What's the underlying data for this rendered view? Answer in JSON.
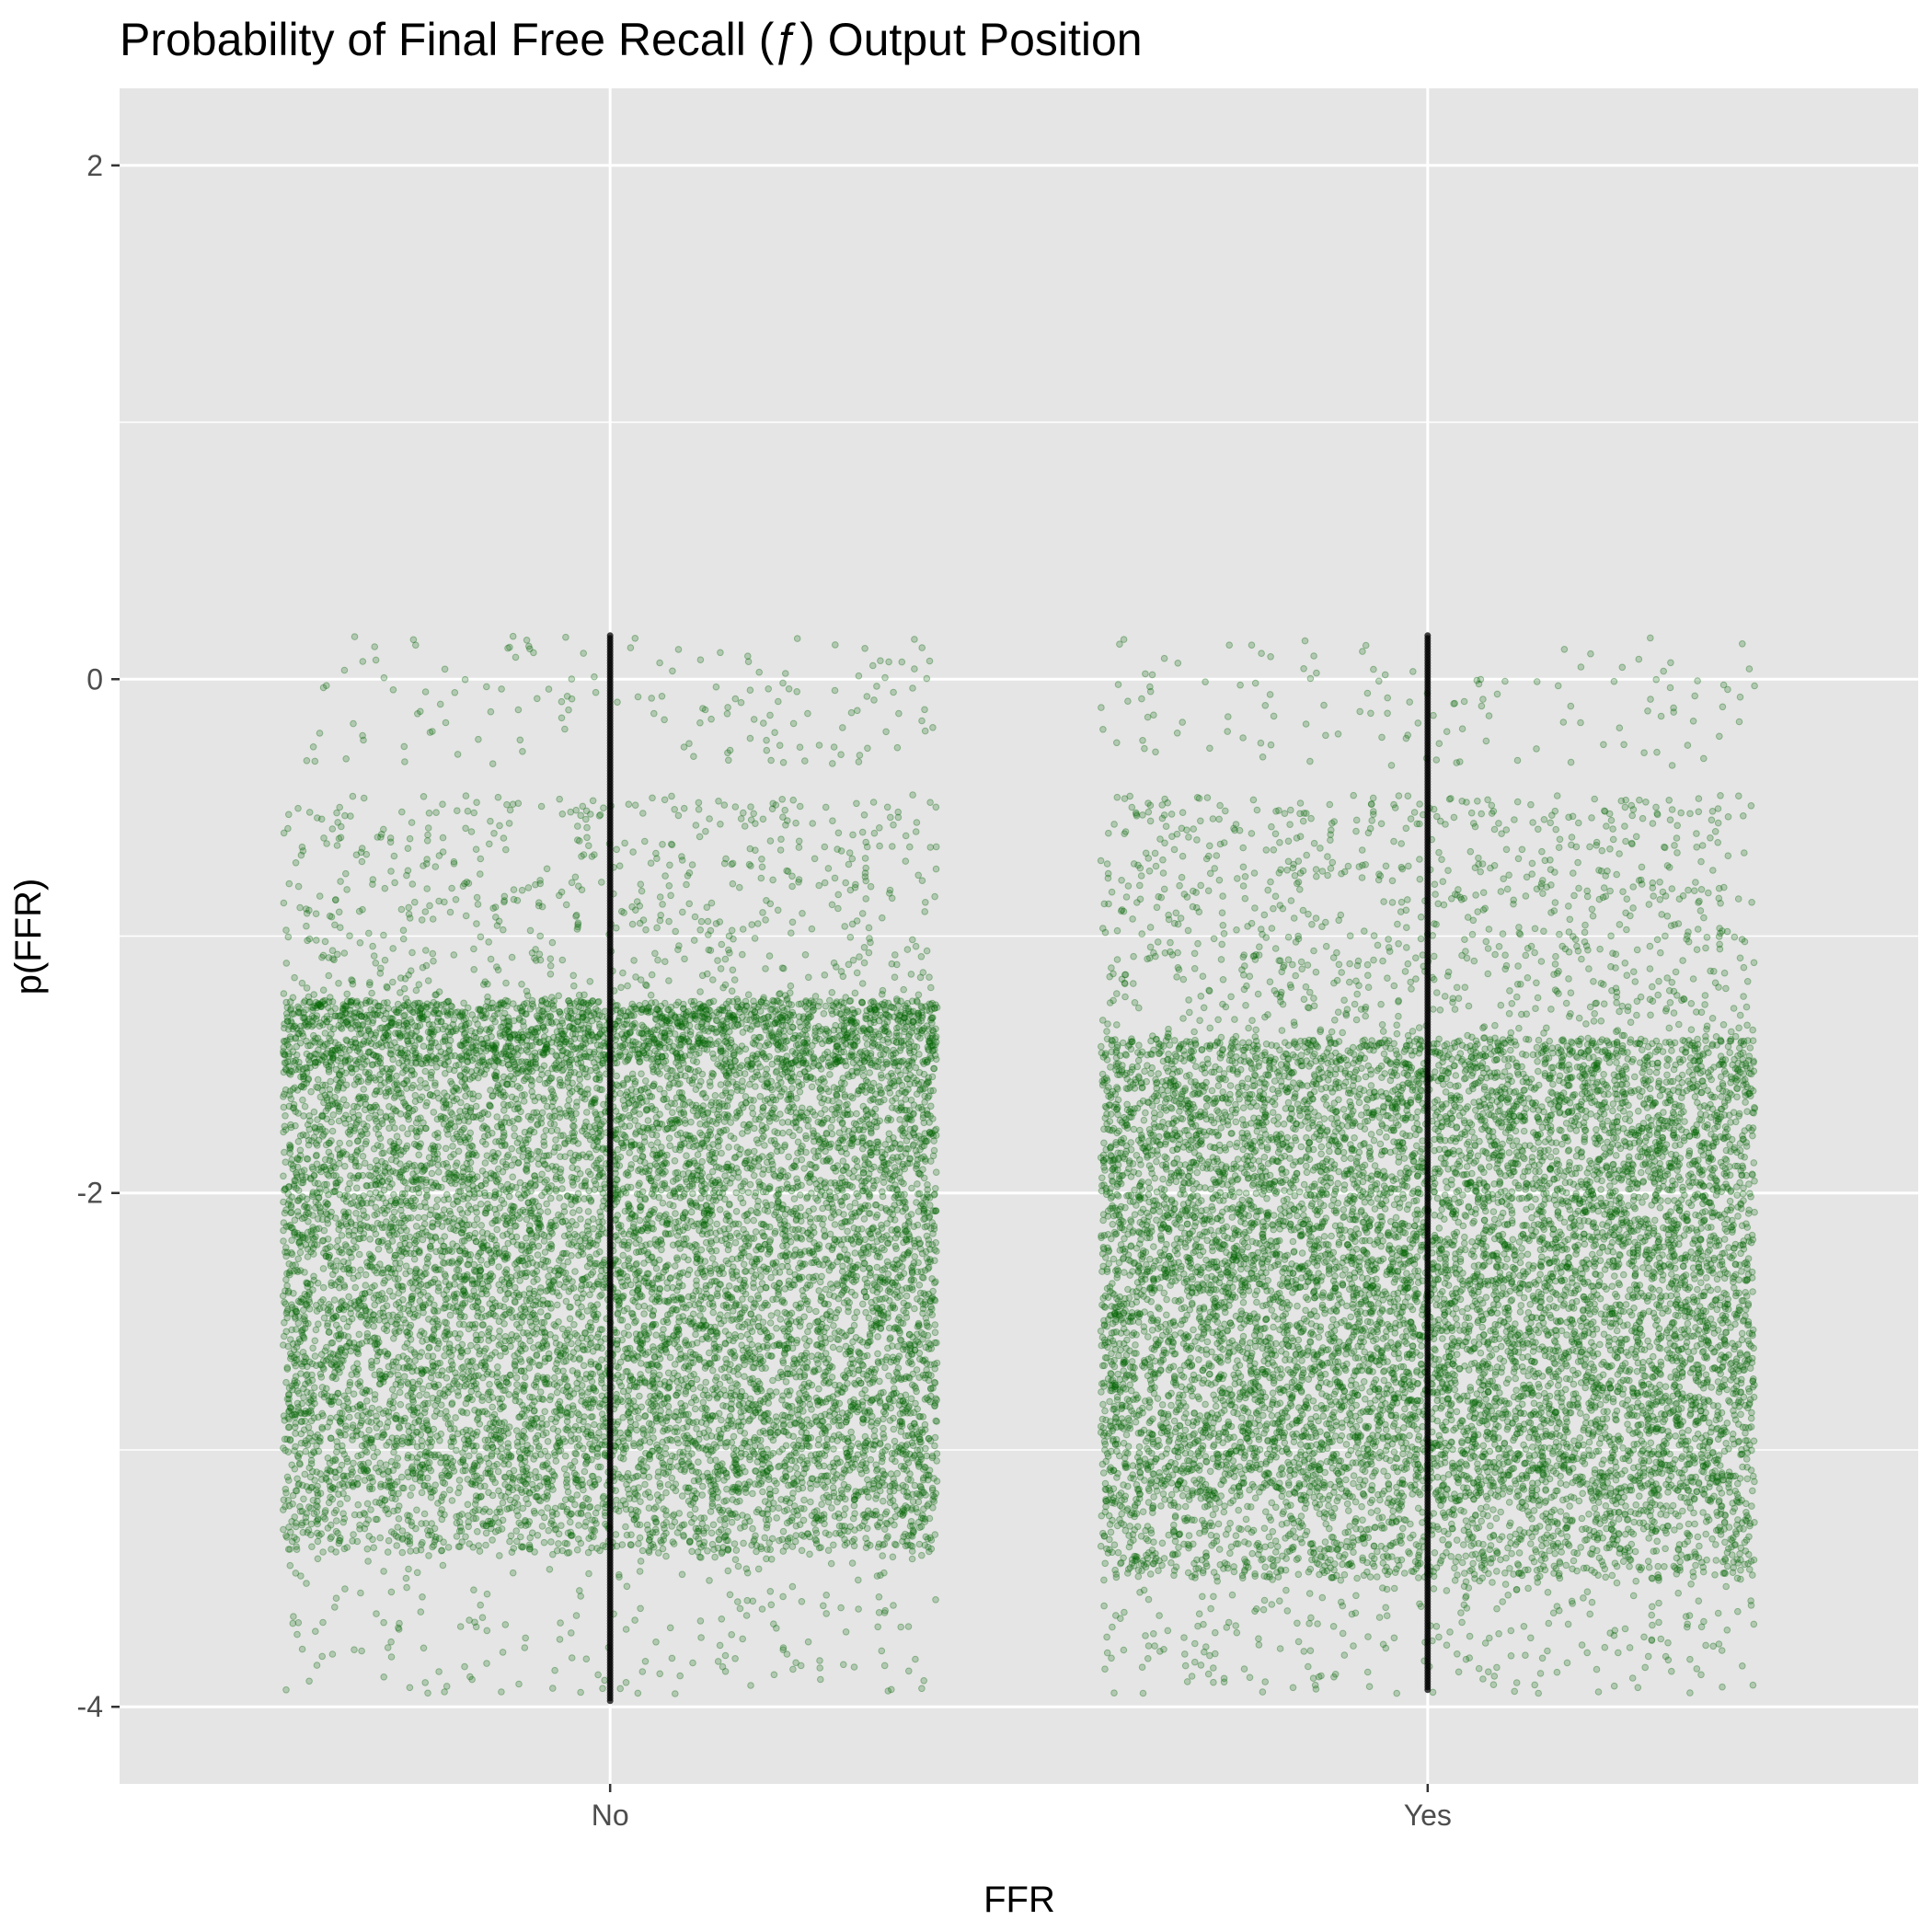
{
  "chart_data": {
    "type": "scatter",
    "title": "Probability of Final Free Recall (ƒ) Output Position",
    "xlabel": "FFR",
    "ylabel": "p(FFR)",
    "categories": [
      "No",
      "Yes"
    ],
    "ylim": [
      -4.3,
      2.3
    ],
    "yticks": [
      2,
      0,
      -2,
      -4
    ],
    "grid": true,
    "legend": "none",
    "colors": {
      "panel_bg": "#e5e5e5",
      "grid_line": "#ffffff",
      "point_fill": "#006400",
      "center_points": "#000000",
      "tick_label": "#4d4d4d"
    },
    "series": [
      {
        "category": "No",
        "jitter_width": 0.4,
        "distribution": [
          {
            "y_from": -0.34,
            "y_to": 0.17,
            "count": 150
          },
          {
            "y_from": -1.25,
            "y_to": -0.45,
            "count": 600
          },
          {
            "y_from": -1.5,
            "y_to": -1.25,
            "count": 800
          },
          {
            "y_from": -3.15,
            "y_to": -1.25,
            "count": 9500
          },
          {
            "y_from": -3.4,
            "y_to": -3.15,
            "count": 900
          },
          {
            "y_from": -3.95,
            "y_to": -3.4,
            "count": 200
          }
        ],
        "center_line": {
          "y_min": -3.98,
          "y_max": 0.17
        }
      },
      {
        "category": "Yes",
        "jitter_width": 0.4,
        "distribution": [
          {
            "y_from": -0.34,
            "y_to": 0.17,
            "count": 130
          },
          {
            "y_from": -1.4,
            "y_to": -0.45,
            "count": 900
          },
          {
            "y_from": -3.2,
            "y_to": -1.4,
            "count": 9500
          },
          {
            "y_from": -3.5,
            "y_to": -3.2,
            "count": 1000
          },
          {
            "y_from": -3.95,
            "y_to": -3.5,
            "count": 250
          }
        ],
        "center_line": {
          "y_min": -3.94,
          "y_max": 0.17
        }
      }
    ]
  }
}
